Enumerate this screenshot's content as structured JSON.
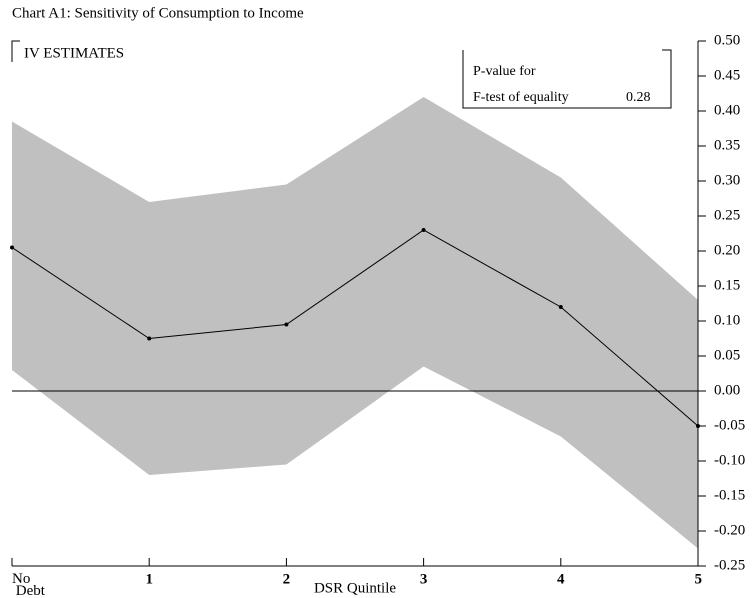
{
  "chart_data": {
    "type": "line",
    "title": "Chart A1: Sensitivity of Consumption to Income",
    "annotations": [
      "IV ESTIMATES",
      "P-value for",
      "F-test of equality",
      "0.28"
    ],
    "x_label": "DSR Quintile",
    "categories": [
      "No Debt",
      "1",
      "2",
      "3",
      "4",
      "5"
    ],
    "series": [
      {
        "color": "#000000",
        "values": [
          0.205,
          0.075,
          0.095,
          0.23,
          0.12,
          -0.05
        ]
      }
    ],
    "band": {
      "color": "#c0c0c0",
      "upper": [
        0.385,
        0.27,
        0.295,
        0.42,
        0.305,
        0.13
      ],
      "lower": [
        0.03,
        -0.12,
        -0.105,
        0.035,
        -0.065,
        -0.225
      ]
    },
    "ylim": [
      -0.25,
      0.5
    ],
    "yticks": [
      {
        "value": 0.5,
        "label": "0.50"
      },
      0.45,
      {
        "value": 0.4,
        "label": "0.40"
      },
      0.35,
      {
        "value": 0.3,
        "label": "0.30"
      },
      0.25,
      {
        "value": 0.2,
        "label": "0.20"
      },
      0.15,
      {
        "value": 0.1,
        "label": "0.10"
      },
      0.05,
      {
        "value": 0,
        "label": "0.00"
      },
      -0.05,
      {
        "value": -0.1,
        "label": "-0.10"
      },
      -0.15,
      {
        "value": -0.2,
        "label": "-0.20"
      },
      -0.25
    ]
  }
}
